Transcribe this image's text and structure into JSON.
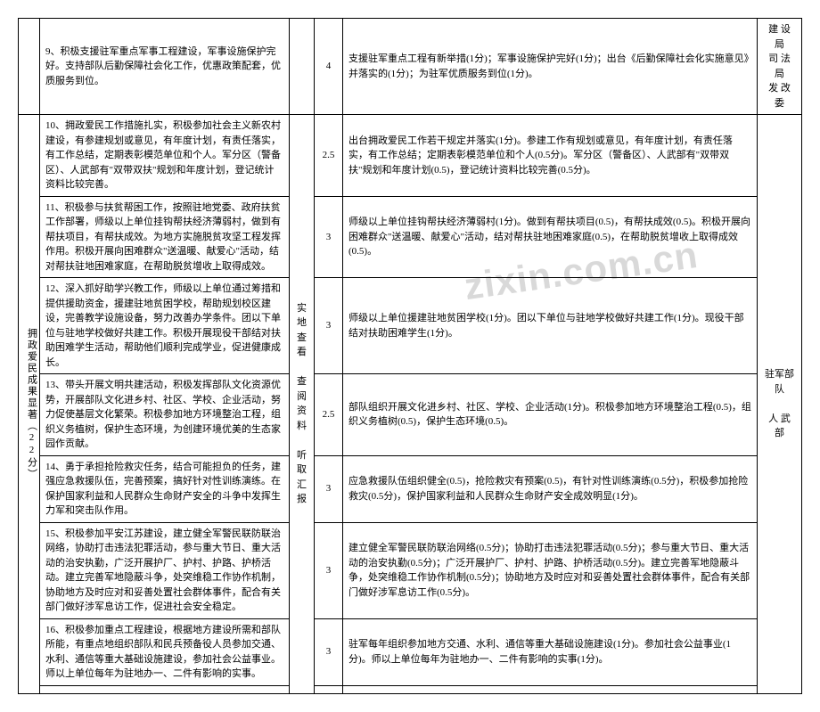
{
  "watermark": "zixin.com.cn",
  "rows": [
    {
      "desc": "9、积极支援驻军重点军事工程建设，军事设施保护完好。支持部队后勤保障社会化工作，优惠政策配套，优质服务到位。",
      "score": "4",
      "detail": "支援驻军重点工程有新举措(1分)；军事设施保护完好(1分)；出台《后勤保障社会化实施意见》并落实的(1分)；为驻军优质服务到位(1分)。",
      "dept": "建 设 局\n司 法 局\n发 改 委"
    },
    {
      "desc": "10、拥政爱民工作措施扎实，积极参加社会主义新农村建设，有参建规划或意见，有年度计划，有责任落实，有工作总结，定期表彰模范单位和个人。军分区（警备区）、人武部有\"双带双扶\"规划和年度计划，登记统计资料比较完善。",
      "score": "2.5",
      "detail": "出台拥政爱民工作若干规定并落实(1分)。参建工作有规划或意见，有年度计划，有责任落实，有工作总结；定期表彰模范单位和个人(0.5分)。军分区（警备区）、人武部有\"双带双扶\"规划和年度计划(0.5)，登记统计资料比较完善(0.5分)。"
    },
    {
      "desc": "11、积极参与扶贫帮困工作，按照驻地党委、政府扶贫工作部署，师级以上单位挂钩帮扶经济薄弱村，做到有帮扶项目，有帮扶成效。为地方实施脱贫攻坚工程发挥作用。积极开展向困难群众\"送温暖、献爱心\"活动，结对帮扶驻地困难家庭，在帮助脱贫增收上取得成效。",
      "score": "3",
      "detail": "师级以上单位挂钩帮扶经济薄弱村(1分)。做到有帮扶项目(0.5)，有帮扶成效(0.5)。积极开展向困难群众\"送温暖、献爱心\"活动，结对帮扶驻地困难家庭(0.5)，在帮助脱贫增收上取得成效(0.5)。"
    },
    {
      "desc": "12、深入抓好助学兴教工作，师级以上单位通过筹措和提供援助资金，援建驻地贫困学校，帮助规划校区建设，完善教学设施设备，努力改善办学条件。团以下单位与驻地学校做好共建工作。积极开展现役干部结对扶助困难学生活动，帮助他们顺利完成学业，促进健康成长。",
      "score": "3",
      "detail": "师级以上单位援建驻地贫困学校(1分)。团以下单位与驻地学校做好共建工作(1分)。现役干部结对扶助困难学生(1分)。"
    },
    {
      "desc": "13、带头开展文明共建活动，积极发挥部队文化资源优势，开展部队文化进乡村、社区、学校、企业活动，努力促使基层文化繁荣。积极参加地方环境整治工程，组织义务植树，保护生态环境，为创建环境优美的生态家园作贡献。",
      "score": "2.5",
      "detail": "部队组织开展文化进乡村、社区、学校、企业活动(1分)。积极参加地方环境整治工程(0.5)，组织义务植树(0.5)，保护生态环境(0.5)。"
    },
    {
      "desc": "14、勇于承担抢险救灾任务，结合可能担负的任务，建强应急救援队伍，完善预案，搞好针对性训练演练。在保护国家利益和人民群众生命财产安全的斗争中发挥生力军和突击队作用。",
      "score": "3",
      "detail": "应急救援队伍组织健全(0.5)，抢险救灾有预案(0.5)，有针对性训练演练(0.5分)，积极参加抢险救灾(0.5分)，保护国家利益和人民群众生命财产安全成效明显(1分)。"
    },
    {
      "desc": "15、积极参加平安江苏建设，建立健全军警民联防联治网络，协助打击违法犯罪活动，参与重大节日、重大活动的治安执勤，广泛开展护厂、护村、护路、护桥活动。建立完善军地隐蔽斗争，处突维稳工作协作机制，协助地方及时应对和妥善处置社会群体事件，配合有关部门做好涉军息访工作，促进社会安全稳定。",
      "score": "3",
      "detail": "建立健全军警民联防联治网络(0.5分)；协助打击违法犯罪活动(0.5分)；参与重大节日、重大活动的治安执勤(0.5分)；广泛开展护厂、护村、护路、护桥活动(0.5分)。建立完善军地隐蔽斗争，处突维稳工作协作机制(0.5分)；协助地方及时应对和妥善处置社会群体事件，配合有关部门做好涉军息访工作(0.5分)。"
    },
    {
      "desc": "16、积极参加重点工程建设，根据地方建设所需和部队所能，有重点地组织部队和民兵预备役人员参加交通、水利、通信等重大基础设施建设，参加社会公益事业。师以上单位每年为驻地办一、二件有影响的实事。",
      "score": "3",
      "detail": "驻军每年组织参加地方交通、水利、通信等重大基础设施建设(1分)。参加社会公益事业(1分)。师以上单位每年为驻地办一、二件有影响的实事(1分)。"
    }
  ],
  "category": "拥政爱民成果显著（22分）",
  "method": "实地查看\n\n查阅资料\n\n听取汇报",
  "dept2": "驻军部队\n\n人 武 部"
}
